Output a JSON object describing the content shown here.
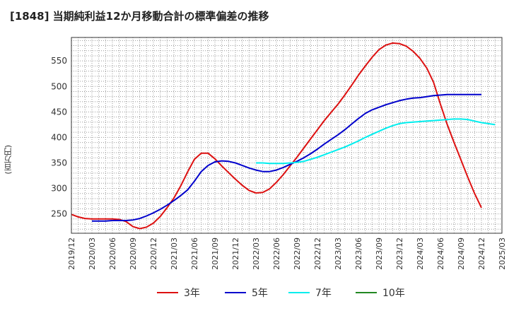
{
  "chart_data": {
    "type": "line",
    "title": "[1848]  当期純利益12か月移動合計の標準偏差の推移",
    "ylabel": "(百万円)",
    "xlabel": "",
    "ylim": [
      212,
      596
    ],
    "y_ticks": [
      250,
      300,
      350,
      400,
      450,
      500,
      550
    ],
    "x_ticks": [
      "2019/12",
      "2020/03",
      "2020/06",
      "2020/09",
      "2020/12",
      "2021/03",
      "2021/06",
      "2021/09",
      "2021/12",
      "2022/03",
      "2022/06",
      "2022/09",
      "2022/12",
      "2023/03",
      "2023/06",
      "2023/09",
      "2023/12",
      "2024/03",
      "2024/06",
      "2024/09",
      "2024/12",
      "2025/03"
    ],
    "grid": true,
    "legend": "bottom",
    "series": [
      {
        "name": "3年",
        "color": "#dd1111",
        "start": "2019/12",
        "values": [
          249,
          244,
          241,
          240,
          240,
          240,
          240,
          239,
          235,
          225,
          221,
          224,
          232,
          245,
          262,
          281,
          305,
          332,
          357,
          369,
          369,
          358,
          344,
          331,
          318,
          306,
          296,
          291,
          292,
          299,
          312,
          327,
          344,
          361,
          379,
          397,
          415,
          433,
          449,
          465,
          483,
          502,
          522,
          540,
          557,
          572,
          581,
          585,
          584,
          579,
          569,
          555,
          536,
          508,
          465,
          425,
          390,
          356,
          322,
          290,
          262
        ]
      },
      {
        "name": "5年",
        "color": "#0000cc",
        "start": "2020/03",
        "values": [
          236,
          236,
          236,
          237,
          237,
          237,
          238,
          241,
          246,
          252,
          259,
          267,
          276,
          286,
          297,
          314,
          333,
          345,
          352,
          354,
          353,
          350,
          345,
          340,
          336,
          333,
          333,
          336,
          341,
          347,
          353,
          360,
          368,
          377,
          387,
          396,
          405,
          415,
          426,
          437,
          447,
          454,
          459,
          464,
          468,
          472,
          475,
          477,
          478,
          480,
          482,
          483,
          484,
          484,
          484,
          484,
          484,
          484
        ]
      },
      {
        "name": "7年",
        "color": "#00eeee",
        "start": "2022/03",
        "values": [
          350,
          350,
          349,
          349,
          349,
          350,
          351,
          353,
          357,
          361,
          366,
          371,
          376,
          381,
          387,
          393,
          400,
          406,
          412,
          418,
          423,
          427,
          429,
          430,
          431,
          432,
          433,
          434,
          435,
          436,
          436,
          435,
          432,
          429,
          427,
          425
        ]
      },
      {
        "name": "10年",
        "color": "#228822",
        "start": "2019/12",
        "values": []
      }
    ]
  }
}
